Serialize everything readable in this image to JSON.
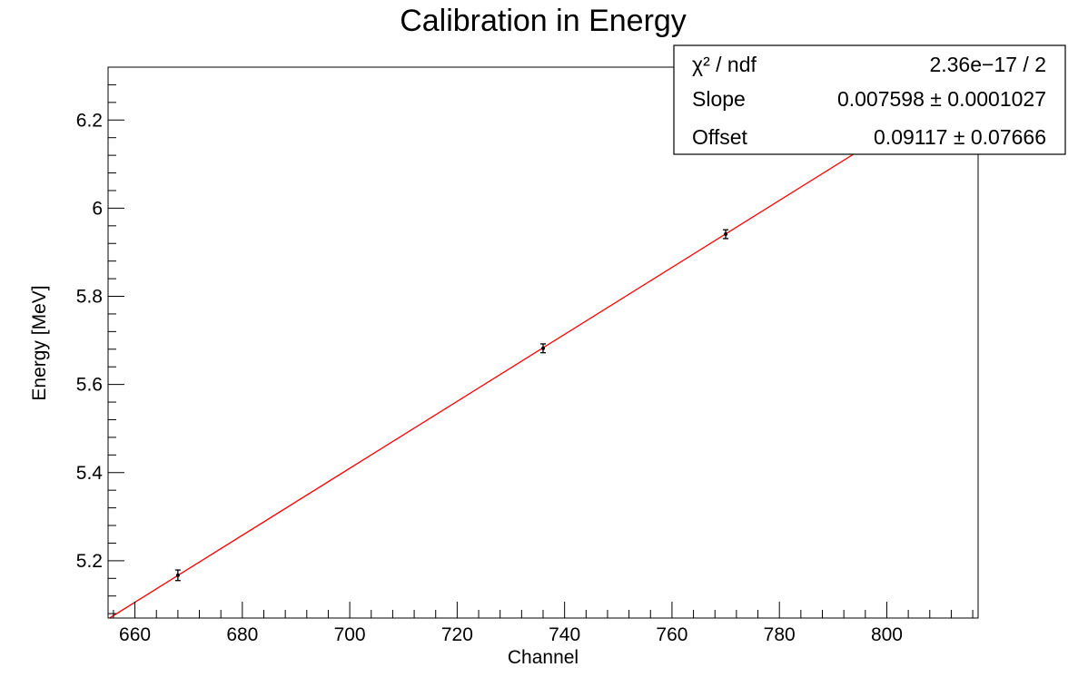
{
  "chart_data": {
    "type": "scatter",
    "title": "Calibration in Energy",
    "xlabel": "Channel",
    "ylabel": "Energy [MeV]",
    "xlim": [
      655,
      817
    ],
    "ylim": [
      5.07,
      6.32
    ],
    "x_major_ticks": [
      660,
      680,
      700,
      720,
      740,
      760,
      780,
      800
    ],
    "x_tick_labels": [
      "660",
      "680",
      "700",
      "720",
      "740",
      "760",
      "780",
      "800"
    ],
    "y_major_ticks": [
      5.2,
      5.4,
      5.6,
      5.8,
      6.0,
      6.2
    ],
    "y_tick_labels": [
      "5.2",
      "5.4",
      "5.6",
      "5.8",
      "6",
      "6.2"
    ],
    "grid": false,
    "points": [
      {
        "x": 668,
        "y": 5.167,
        "yerr": 0.012
      },
      {
        "x": 736,
        "y": 5.682,
        "yerr": 0.01
      },
      {
        "x": 770,
        "y": 5.941,
        "yerr": 0.01
      }
    ],
    "fit": {
      "type": "linear",
      "slope": 0.007598,
      "offset": 0.09117,
      "color": "#ff0000"
    },
    "stats_box": {
      "placement": "top-right",
      "rows": [
        {
          "label": "χ² / ndf",
          "value": "2.36e−17 / 2"
        },
        {
          "label": "Slope",
          "value": "0.007598 ± 0.0001027"
        },
        {
          "label": "Offset",
          "value": "0.09117 ± 0.07666"
        }
      ]
    },
    "colors": {
      "points": "#000000",
      "fit": "#ff0000",
      "frame": "#000000"
    }
  }
}
